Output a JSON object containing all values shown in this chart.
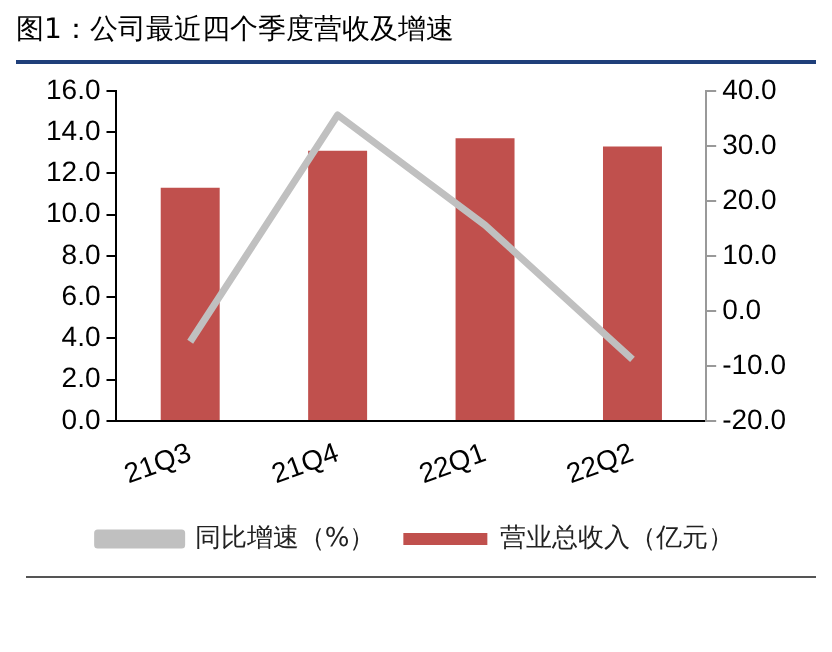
{
  "chart_data": {
    "type": "bar",
    "title": "图1：公司最近四个季度营收及增速",
    "categories": [
      "21Q3",
      "21Q4",
      "22Q1",
      "22Q2"
    ],
    "series": [
      {
        "name": "营业总收入（亿元）",
        "color": "#c0504d",
        "values": [
          11.3,
          13.1,
          13.7,
          13.3
        ]
      },
      {
        "name": "同比增速（%）",
        "type": "line",
        "axis": "y2",
        "color": "#c0c0c0",
        "values": [
          -5.6,
          35.6,
          15.6,
          -8.8
        ]
      }
    ],
    "ylim": [
      0,
      16
    ],
    "yticks": [
      {
        "value": 0,
        "label": "0.0"
      },
      {
        "value": 2,
        "label": "2.0"
      },
      {
        "value": 4,
        "label": "4.0"
      },
      {
        "value": 6,
        "label": "6.0"
      },
      {
        "value": 8,
        "label": "8.0"
      },
      {
        "value": 10,
        "label": "10.0"
      },
      {
        "value": 12,
        "label": "12.0"
      },
      {
        "value": 14,
        "label": "14.0"
      },
      {
        "value": 16,
        "label": "16.0"
      }
    ],
    "y2lim": [
      -20,
      40
    ],
    "y2ticks": [
      {
        "value": -20,
        "label": "-20.0"
      },
      {
        "value": -10,
        "label": "-10.0"
      },
      {
        "value": 0,
        "label": "0.0"
      },
      {
        "value": 10,
        "label": "10.0"
      },
      {
        "value": 20,
        "label": "20.0"
      },
      {
        "value": 30,
        "label": "30.0"
      },
      {
        "value": 40,
        "label": "40.0"
      }
    ],
    "grid": false,
    "legend": "bottom",
    "marker": "none",
    "line_style": "solid"
  }
}
